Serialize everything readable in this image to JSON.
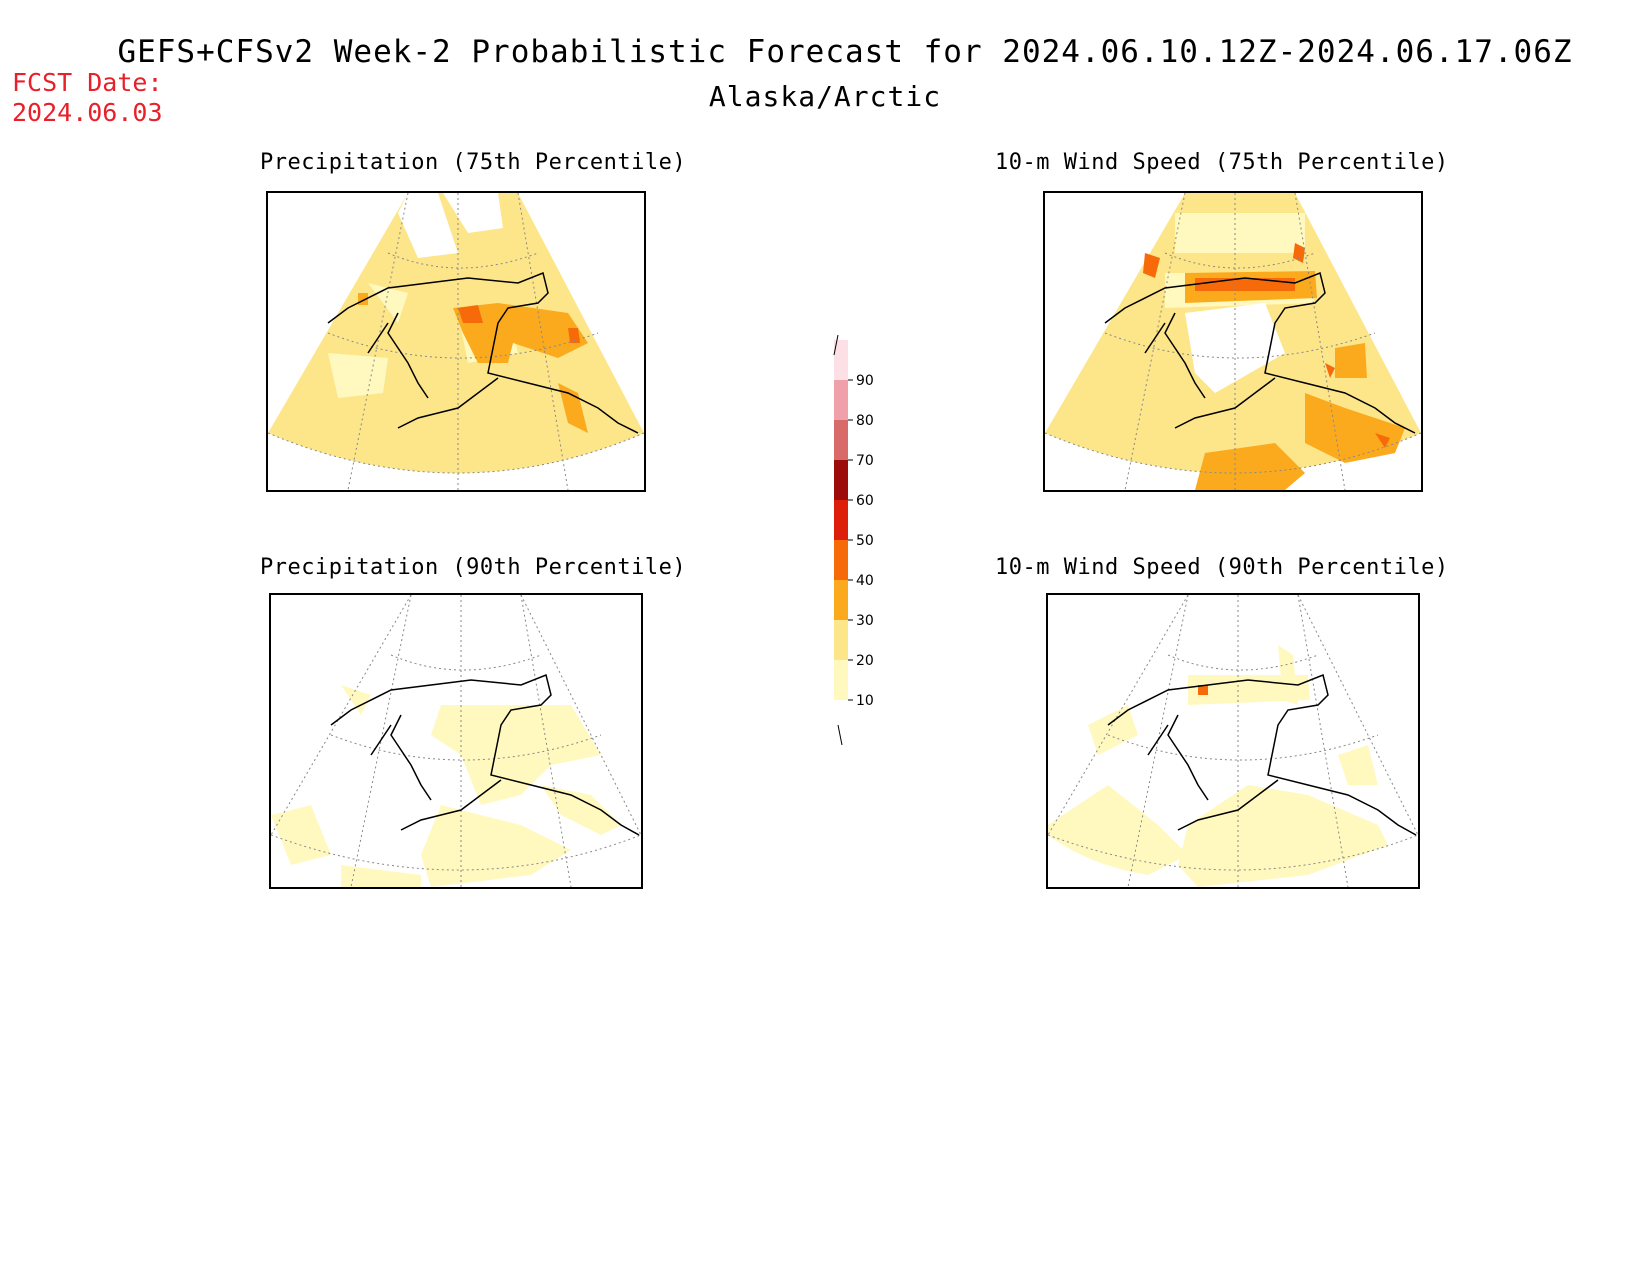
{
  "header": {
    "title": "GEFS+CFSv2 Week-2 Probabilistic Forecast for 2024.06.10.12Z-2024.06.17.06Z",
    "subtitle": "Alaska/Arctic",
    "fcst_label": "FCST Date:",
    "fcst_date": "2024.06.03"
  },
  "panels": [
    {
      "id": "precip75",
      "title": "Precipitation (75th Percentile)"
    },
    {
      "id": "wind75",
      "title": "10-m Wind Speed (75th Percentile)"
    },
    {
      "id": "precip90",
      "title": "Precipitation (90th Percentile)"
    },
    {
      "id": "wind90",
      "title": "10-m Wind Speed (90th Percentile)"
    }
  ],
  "colorbar": {
    "levels": [
      "10",
      "20",
      "30",
      "40",
      "50",
      "60",
      "70",
      "80",
      "90"
    ],
    "colors": [
      "#fff9bf",
      "#fde68a",
      "#fbaa1e",
      "#f76a0a",
      "#dc1e0a",
      "#9c0c0a",
      "#d86a6a",
      "#f0a0a8",
      "#fde0e6"
    ]
  },
  "fills": {
    "p10_20": "#fff9bf",
    "p20_30": "#fde68a",
    "p30_40": "#fbaa1e",
    "p40_50": "#f76a0a"
  }
}
